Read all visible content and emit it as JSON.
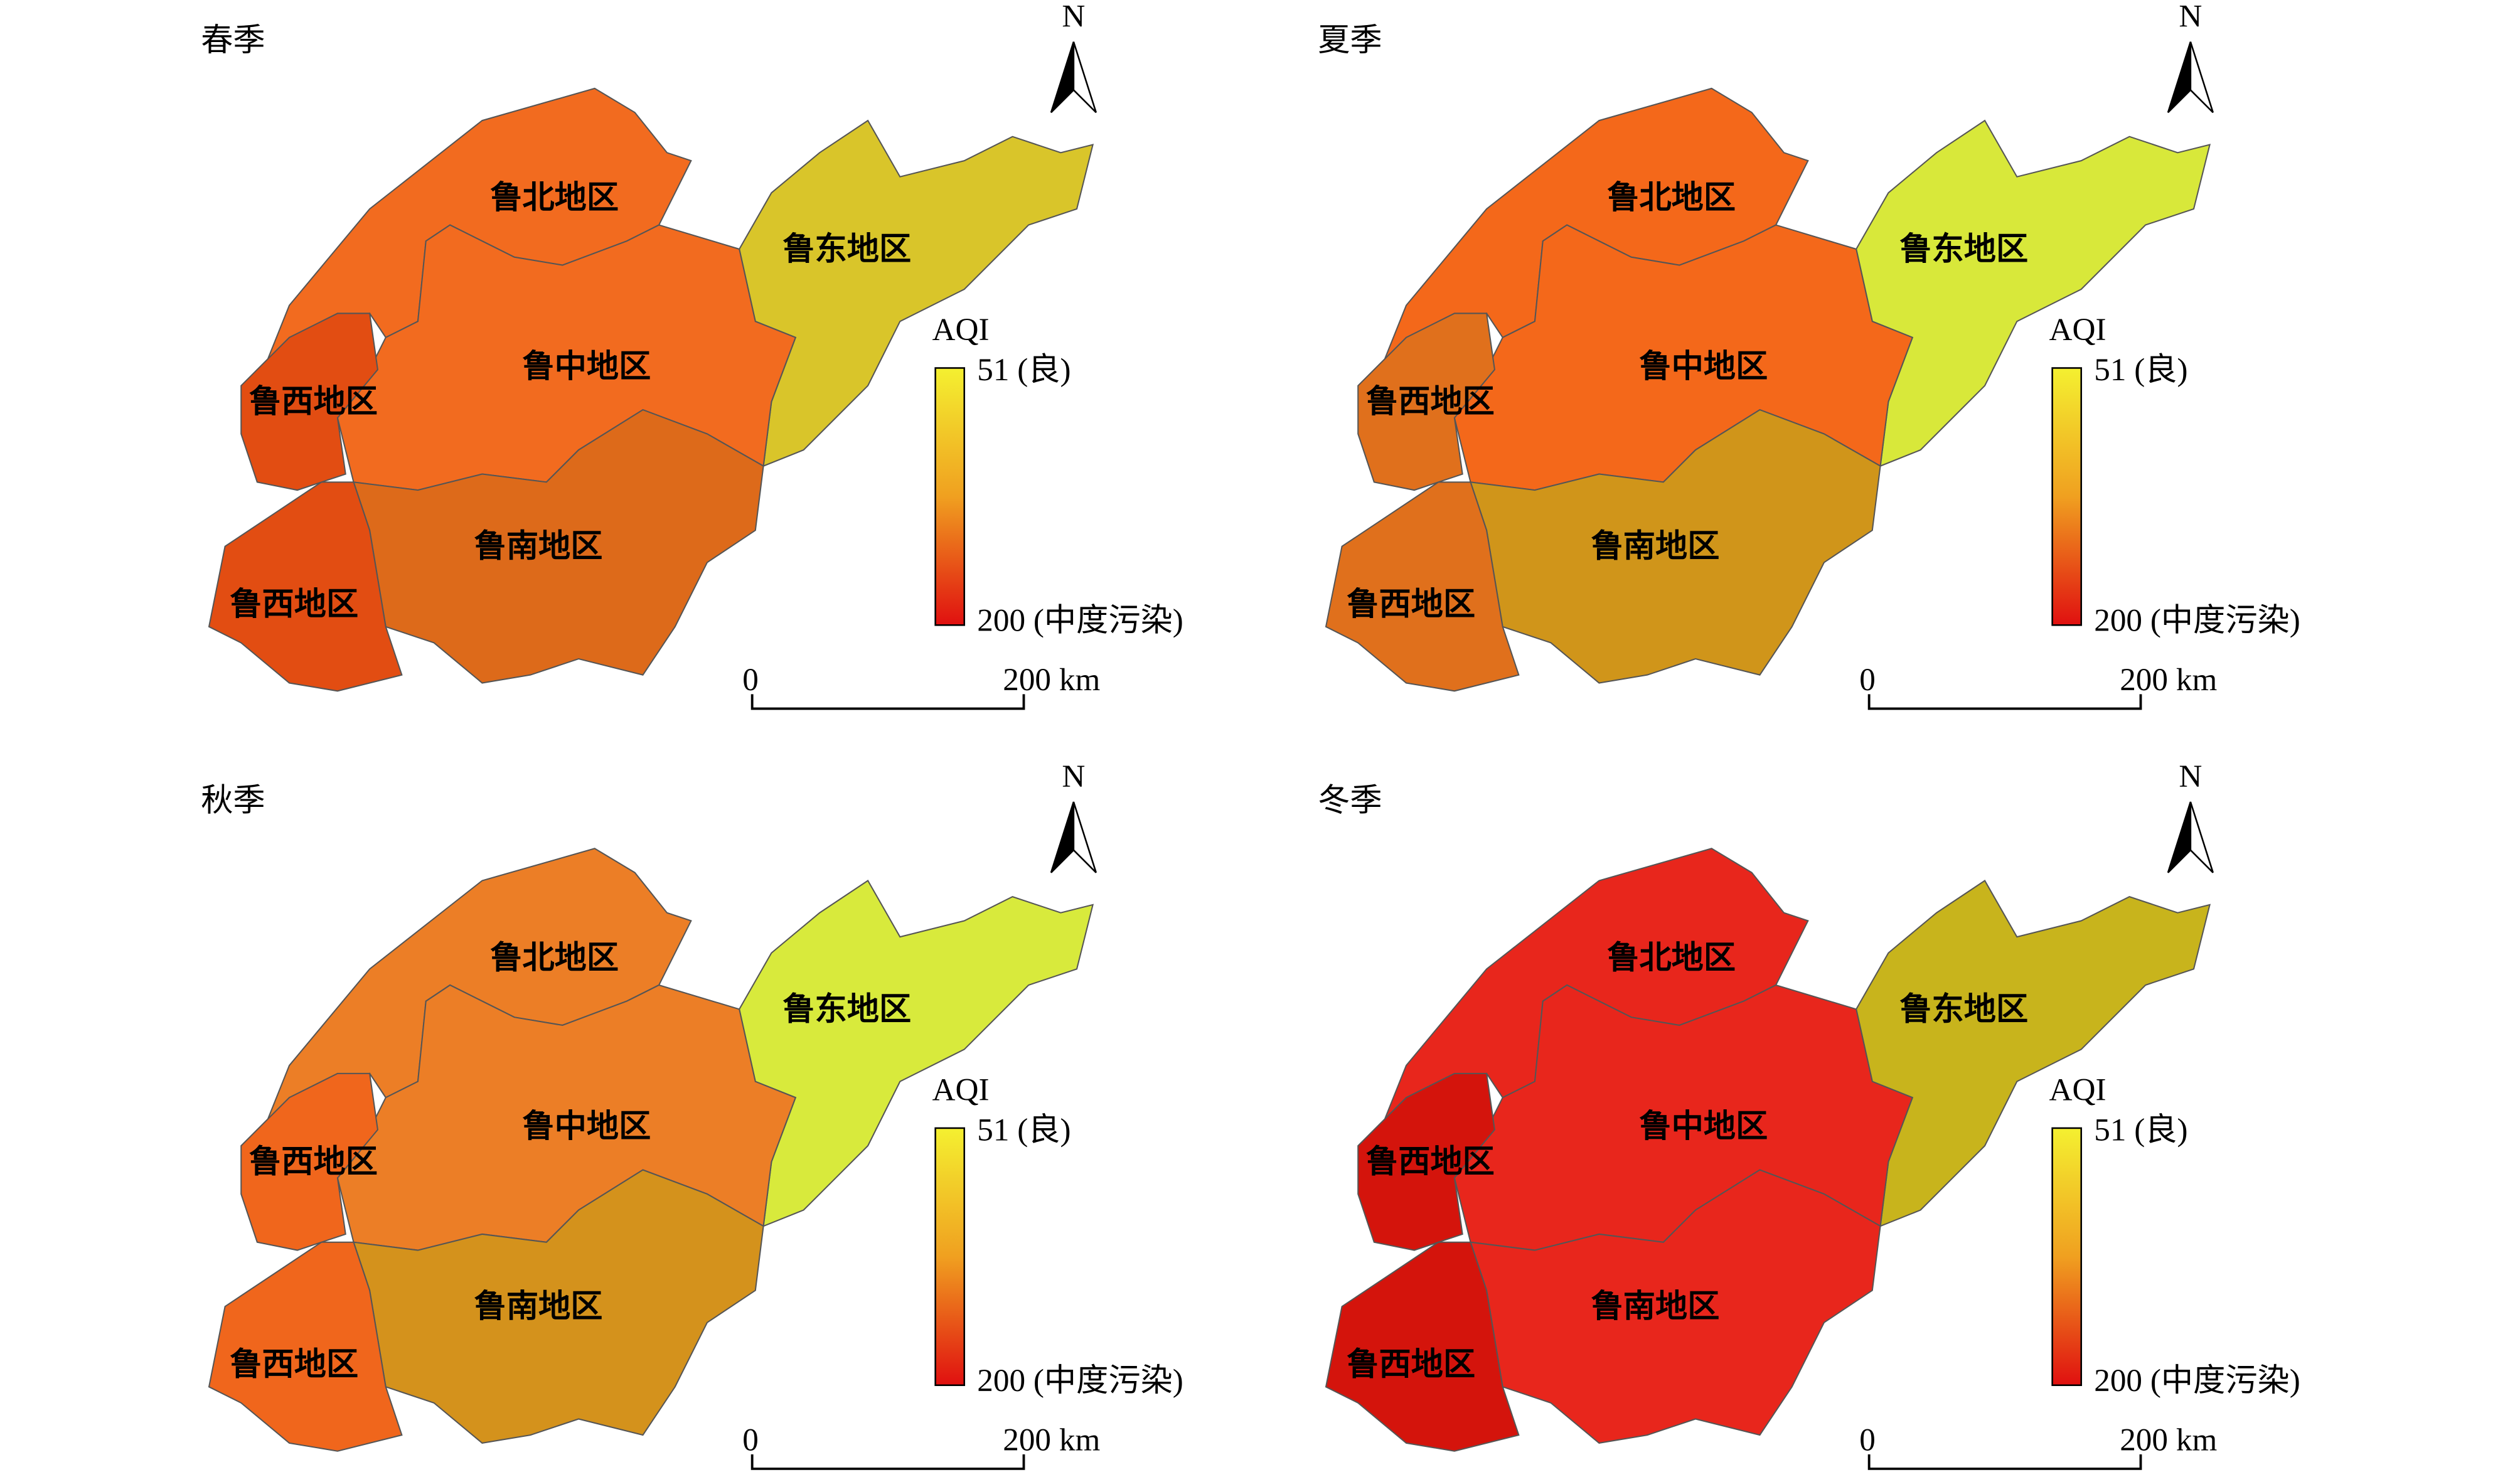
{
  "panels": [
    {
      "title": "春季",
      "regions": [
        {
          "label": "鲁北地区",
          "color": "#f26b1f"
        },
        {
          "label": "鲁东地区",
          "color": "#d9c52a"
        },
        {
          "label": "鲁中地区",
          "color": "#f26b1f"
        },
        {
          "label": "鲁西地区",
          "color": "#e24d12"
        },
        {
          "label": "鲁南地区",
          "color": "#dd6a1a"
        },
        {
          "label": "鲁西地区",
          "color": "#e24d12"
        }
      ]
    },
    {
      "title": "夏季",
      "regions": [
        {
          "label": "鲁北地区",
          "color": "#f4681a"
        },
        {
          "label": "鲁东地区",
          "color": "#d8e83a"
        },
        {
          "label": "鲁中地区",
          "color": "#f4681a"
        },
        {
          "label": "鲁西地区",
          "color": "#e0701c"
        },
        {
          "label": "鲁南地区",
          "color": "#d0951a"
        },
        {
          "label": "鲁西地区",
          "color": "#e0701c"
        }
      ]
    },
    {
      "title": "秋季",
      "regions": [
        {
          "label": "鲁北地区",
          "color": "#ec7e26"
        },
        {
          "label": "鲁东地区",
          "color": "#d8ea3c"
        },
        {
          "label": "鲁中地区",
          "color": "#ec7e26"
        },
        {
          "label": "鲁西地区",
          "color": "#f0661c"
        },
        {
          "label": "鲁南地区",
          "color": "#d4921c"
        },
        {
          "label": "鲁西地区",
          "color": "#f0661c"
        }
      ]
    },
    {
      "title": "冬季",
      "regions": [
        {
          "label": "鲁北地区",
          "color": "#e8261c"
        },
        {
          "label": "鲁东地区",
          "color": "#c8b41c"
        },
        {
          "label": "鲁中地区",
          "color": "#e8261c"
        },
        {
          "label": "鲁西地区",
          "color": "#d4140c"
        },
        {
          "label": "鲁南地区",
          "color": "#e8261c"
        },
        {
          "label": "鲁西地区",
          "color": "#d4140c"
        }
      ]
    }
  ],
  "legend": {
    "title": "AQI",
    "top_label": "51 (良)",
    "bottom_label": "200 (中度污染)",
    "colors": [
      "#f4f030",
      "#f0a020",
      "#e01010"
    ]
  },
  "scale_bar": {
    "start": "0",
    "end": "200 km"
  },
  "north": "N"
}
